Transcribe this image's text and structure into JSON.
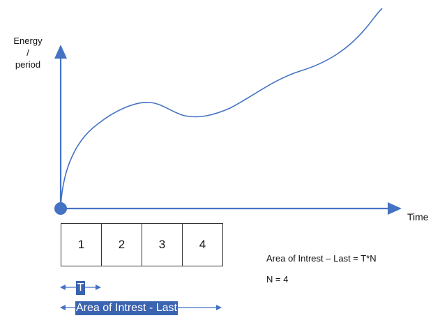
{
  "y_axis_label": [
    "Energy",
    "/",
    "period"
  ],
  "x_axis_label": "Time",
  "periods": [
    "1",
    "2",
    "3",
    "4"
  ],
  "span_label_period": "T",
  "span_label_area": "Area of Intrest - Last",
  "formula_text": "Area of Intrest – Last = T*N",
  "n_value_text": "N = 4",
  "colors": {
    "axis": "#4472c4",
    "curve": "#4472c4",
    "origin_dot": "#4472c4",
    "highlight": "#3a63b0"
  }
}
